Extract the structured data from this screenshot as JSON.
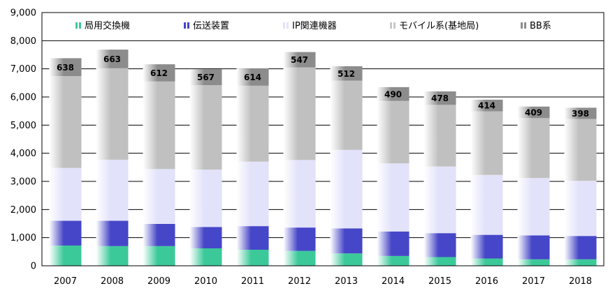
{
  "chart_data": {
    "type": "bar",
    "stacked": true,
    "categories": [
      "2007",
      "2008",
      "2009",
      "2010",
      "2011",
      "2012",
      "2013",
      "2014",
      "2015",
      "2016",
      "2017",
      "2018"
    ],
    "ylim": [
      0,
      9000
    ],
    "yticks": [
      "0",
      "1,000",
      "2,000",
      "3,000",
      "4,000",
      "5,000",
      "6,000",
      "7,000",
      "8,000",
      "9,000"
    ],
    "ytick_values": [
      0,
      1000,
      2000,
      3000,
      4000,
      5000,
      6000,
      7000,
      8000,
      9000
    ],
    "grid": true,
    "legend_position": "top",
    "series": [
      {
        "name": "局用交換機",
        "color": "#3cc99a",
        "values": [
          720,
          700,
          700,
          620,
          570,
          530,
          440,
          350,
          310,
          260,
          230,
          230
        ]
      },
      {
        "name": "伝送装置",
        "color": "#4646c8",
        "values": [
          880,
          900,
          790,
          760,
          840,
          830,
          890,
          870,
          850,
          840,
          850,
          830
        ]
      },
      {
        "name": "IP関連機器",
        "color": "#e2e2fa",
        "values": [
          1880,
          2170,
          1950,
          2040,
          2290,
          2400,
          2790,
          2420,
          2370,
          2130,
          2040,
          1960
        ]
      },
      {
        "name": "モバイル系(基地局)",
        "color": "#c8c8c8",
        "values": [
          3260,
          3250,
          3110,
          3000,
          2700,
          3290,
          2460,
          2220,
          2190,
          2260,
          2130,
          2200
        ]
      },
      {
        "name": "BB系",
        "color": "#8c8c8c",
        "values": [
          638,
          663,
          612,
          567,
          614,
          547,
          512,
          490,
          478,
          414,
          409,
          398
        ]
      }
    ],
    "data_labels": [
      "638",
      "663",
      "612",
      "567",
      "614",
      "547",
      "512",
      "490",
      "478",
      "414",
      "409",
      "398"
    ]
  }
}
